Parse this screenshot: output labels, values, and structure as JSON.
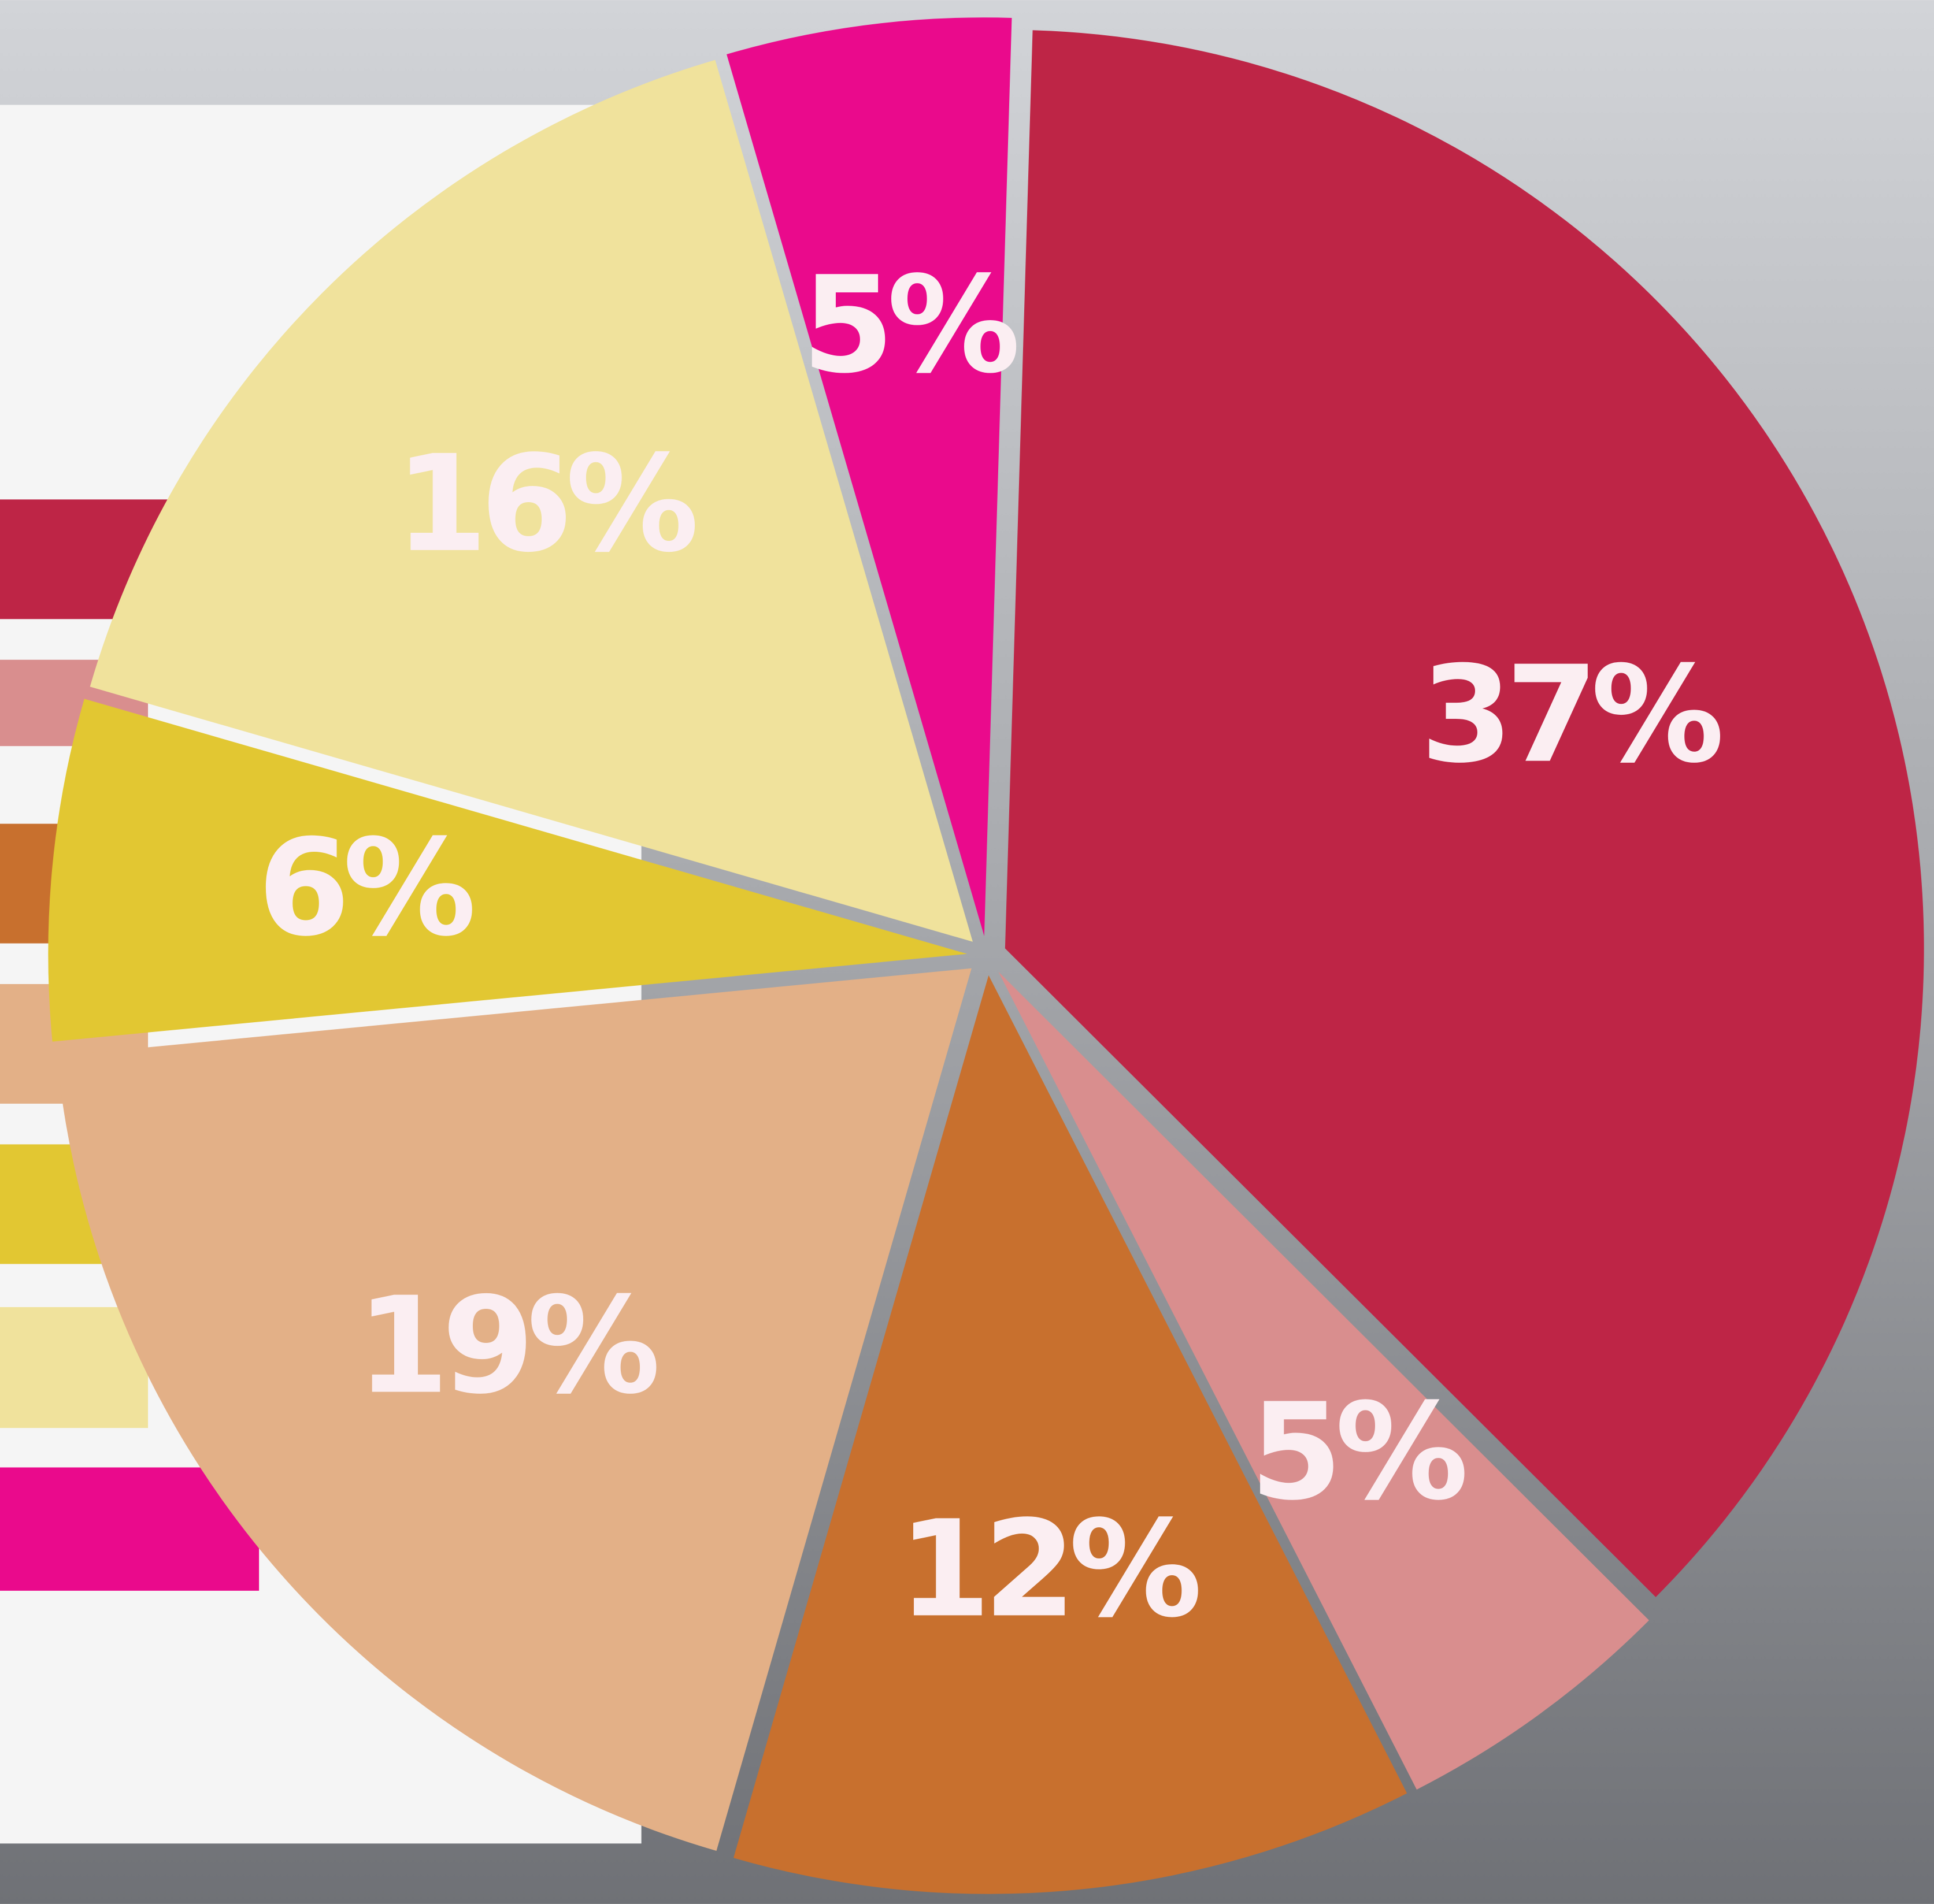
{
  "chart_data": {
    "type": "pie",
    "values": [
      37,
      5,
      12,
      19,
      6,
      16,
      5
    ],
    "value_labels": [
      "37%",
      "5%",
      "12%",
      "19%",
      "6%",
      "16%",
      "5%"
    ],
    "colors": [
      "#be2546",
      "#d98e8e",
      "#c8702e",
      "#e3b087",
      "#e2c732",
      "#f0e29c",
      "#ea0a8c"
    ]
  }
}
